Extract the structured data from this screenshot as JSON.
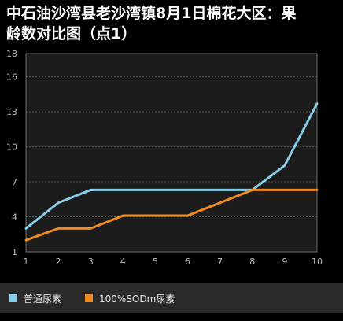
{
  "chart_data": {
    "type": "line",
    "title": "中石油沙湾县老沙湾镇8月1日棉花大区：果龄数对比图（点1）",
    "title_lines": [
      "中石油沙湾县老沙湾镇8月1日棉花大区：果",
      "龄数对比图（点1）"
    ],
    "xlabel": "",
    "ylabel": "",
    "x": [
      1,
      2,
      3,
      4,
      5,
      6,
      7,
      8,
      9,
      10
    ],
    "x_tick_labels": [
      "1",
      "2",
      "3",
      "4",
      "5",
      "6",
      "7",
      "8",
      "9",
      "10"
    ],
    "y_ticks": [
      1,
      4,
      7,
      10,
      13,
      16,
      18
    ],
    "y_tick_labels": [
      "1",
      "4",
      "7",
      "10",
      "13",
      "16",
      "18"
    ],
    "ylim": [
      1,
      18
    ],
    "grid": true,
    "legend_position": "bottom",
    "series": [
      {
        "name": "普通尿素",
        "color": "#87ceeb",
        "values": [
          3.0,
          5.2,
          6.3,
          6.3,
          6.3,
          6.3,
          6.3,
          6.3,
          8.4,
          13.7
        ]
      },
      {
        "name": "100%SODm尿素",
        "color": "#f08c1e",
        "values": [
          2.0,
          3.0,
          3.0,
          4.1,
          4.1,
          4.1,
          5.2,
          6.3,
          6.3,
          6.3
        ]
      }
    ]
  }
}
